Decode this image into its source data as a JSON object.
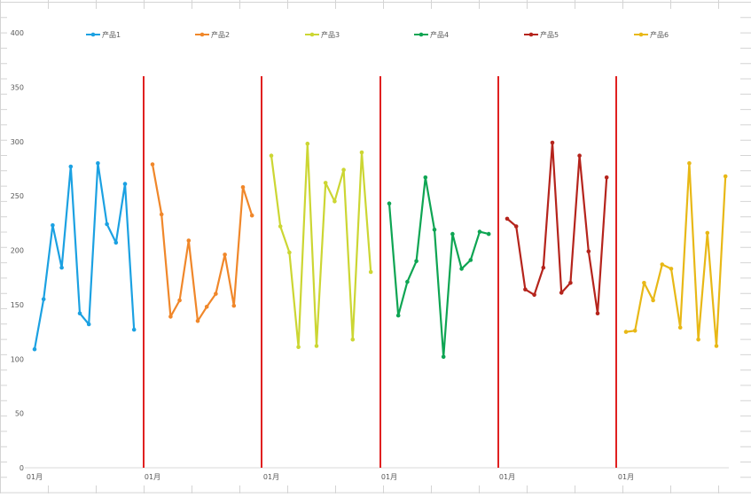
{
  "chart_data": {
    "type": "line",
    "title": "",
    "xlabel": "",
    "ylabel": "",
    "ylim": [
      0,
      400
    ],
    "y_ticks": [
      "0",
      "50",
      "100",
      "150",
      "200",
      "250",
      "300",
      "350",
      "400"
    ],
    "x_tick_label": "01月",
    "legend_position": "top",
    "grid": false,
    "divider_color": "#e02020",
    "series": [
      {
        "name": "产品1",
        "color": "#1ba1e2",
        "values": [
          109,
          155,
          223,
          184,
          277,
          142,
          132,
          280,
          224,
          207,
          261,
          127
        ]
      },
      {
        "name": "产品2",
        "color": "#f0872a",
        "values": [
          279,
          233,
          139,
          154,
          209,
          135,
          148,
          160,
          196,
          149,
          258,
          232
        ]
      },
      {
        "name": "产品3",
        "color": "#ccd633",
        "values": [
          287,
          222,
          198,
          111,
          298,
          112,
          262,
          245,
          274,
          118,
          290,
          180
        ]
      },
      {
        "name": "产品4",
        "color": "#0ea553",
        "values": [
          243,
          140,
          171,
          190,
          267,
          219,
          102,
          215,
          183,
          191,
          217,
          215
        ]
      },
      {
        "name": "产品5",
        "color": "#b5241c",
        "values": [
          229,
          222,
          164,
          159,
          184,
          299,
          161,
          170,
          287,
          199,
          142,
          267
        ]
      },
      {
        "name": "产品6",
        "color": "#e8b816",
        "values": [
          125,
          126,
          170,
          154,
          187,
          183,
          129,
          280,
          118,
          216,
          112,
          268
        ]
      }
    ]
  }
}
